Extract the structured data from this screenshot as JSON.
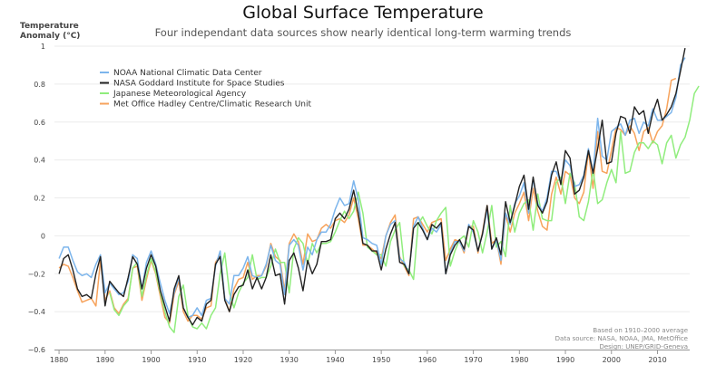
{
  "header": {
    "title": "Global Surface Temperature",
    "subtitle": "Four independant data sources show nearly identical long-term warming trends",
    "y_axis_title_line1": "Temperature",
    "y_axis_title_line2": "Anomaly (°C)"
  },
  "credits": {
    "line1": "Based on 1910–2000 average",
    "line2": "Data source: NASA, NOAA, JMA, MetOffice",
    "line3": "Design: UNEP/GRID-Geneva"
  },
  "chart_data": {
    "type": "line",
    "title": "Global Surface Temperature",
    "subtitle": "Four independant data sources show nearly identical long-term warming trends",
    "xlabel": "",
    "ylabel": "Temperature Anomaly (°C)",
    "xlim": [
      1879,
      2017
    ],
    "ylim": [
      -0.6,
      1.0
    ],
    "xticks": [
      "1880",
      "1890",
      "1900",
      "1910",
      "1920",
      "1930",
      "1940",
      "1950",
      "1960",
      "1970",
      "1980",
      "1990",
      "2000",
      "2010"
    ],
    "yticks": [
      "1",
      "0.8",
      "0.6",
      "0.4",
      "0.2",
      "0",
      "−0.2",
      "−0.4",
      "−0.6"
    ],
    "legend_position": "top-left",
    "series": [
      {
        "name": "NOAA National Climatic Data Center",
        "color": "#7cb5ec",
        "start_year": 1880,
        "values": [
          -0.12,
          -0.06,
          -0.06,
          -0.13,
          -0.19,
          -0.21,
          -0.2,
          -0.22,
          -0.15,
          -0.1,
          -0.3,
          -0.25,
          -0.28,
          -0.31,
          -0.3,
          -0.24,
          -0.1,
          -0.12,
          -0.28,
          -0.14,
          -0.08,
          -0.15,
          -0.25,
          -0.34,
          -0.41,
          -0.3,
          -0.22,
          -0.38,
          -0.43,
          -0.42,
          -0.38,
          -0.42,
          -0.34,
          -0.33,
          -0.16,
          -0.08,
          -0.33,
          -0.36,
          -0.21,
          -0.21,
          -0.17,
          -0.11,
          -0.21,
          -0.22,
          -0.21,
          -0.15,
          -0.05,
          -0.13,
          -0.15,
          -0.31,
          -0.05,
          -0.02,
          -0.05,
          -0.18,
          -0.06,
          -0.1,
          -0.02,
          0.02,
          0.02,
          0.06,
          0.14,
          0.2,
          0.16,
          0.17,
          0.29,
          0.19,
          -0.01,
          -0.02,
          -0.04,
          -0.05,
          -0.15,
          0.0,
          0.06,
          0.08,
          -0.12,
          -0.14,
          -0.2,
          0.05,
          0.1,
          0.04,
          -0.02,
          0.04,
          0.02,
          0.06,
          -0.2,
          -0.09,
          -0.03,
          -0.03,
          -0.08,
          0.06,
          0.02,
          -0.08,
          0.01,
          0.14,
          -0.07,
          -0.02,
          -0.13,
          0.12,
          0.06,
          0.17,
          0.21,
          0.28,
          0.12,
          0.3,
          0.17,
          0.13,
          0.2,
          0.34,
          0.34,
          0.28,
          0.4,
          0.37,
          0.26,
          0.27,
          0.32,
          0.46,
          0.33,
          0.62,
          0.42,
          0.4,
          0.55,
          0.57,
          0.59,
          0.53,
          0.61,
          0.62,
          0.54,
          0.6,
          0.58,
          0.67,
          0.61,
          0.61,
          0.63,
          0.65,
          0.73,
          0.9,
          0.94
        ]
      },
      {
        "name": "NASA Goddard Institute for Space Studies",
        "color": "#222222",
        "start_year": 1880,
        "values": [
          -0.2,
          -0.12,
          -0.1,
          -0.18,
          -0.28,
          -0.32,
          -0.31,
          -0.33,
          -0.2,
          -0.11,
          -0.37,
          -0.24,
          -0.27,
          -0.3,
          -0.32,
          -0.22,
          -0.11,
          -0.15,
          -0.28,
          -0.17,
          -0.1,
          -0.16,
          -0.29,
          -0.37,
          -0.45,
          -0.28,
          -0.21,
          -0.38,
          -0.43,
          -0.47,
          -0.43,
          -0.45,
          -0.36,
          -0.34,
          -0.15,
          -0.11,
          -0.34,
          -0.4,
          -0.31,
          -0.27,
          -0.26,
          -0.18,
          -0.28,
          -0.22,
          -0.28,
          -0.22,
          -0.1,
          -0.21,
          -0.2,
          -0.36,
          -0.13,
          -0.09,
          -0.17,
          -0.29,
          -0.13,
          -0.2,
          -0.15,
          -0.03,
          -0.03,
          -0.02,
          0.09,
          0.12,
          0.09,
          0.14,
          0.24,
          0.12,
          -0.04,
          -0.05,
          -0.08,
          -0.08,
          -0.18,
          -0.07,
          0.01,
          0.07,
          -0.14,
          -0.15,
          -0.2,
          0.04,
          0.07,
          0.03,
          -0.02,
          0.06,
          0.04,
          0.07,
          -0.2,
          -0.1,
          -0.05,
          -0.02,
          -0.07,
          0.05,
          0.03,
          -0.08,
          0.01,
          0.16,
          -0.07,
          -0.01,
          -0.1,
          0.18,
          0.07,
          0.16,
          0.26,
          0.32,
          0.14,
          0.31,
          0.16,
          0.12,
          0.18,
          0.32,
          0.39,
          0.27,
          0.45,
          0.41,
          0.22,
          0.24,
          0.31,
          0.45,
          0.33,
          0.46,
          0.61,
          0.38,
          0.39,
          0.54,
          0.63,
          0.62,
          0.54,
          0.68,
          0.64,
          0.66,
          0.54,
          0.65,
          0.72,
          0.61,
          0.64,
          0.68,
          0.75,
          0.87,
          0.99
        ]
      },
      {
        "name": "Japanese Meteorological Agency",
        "color": "#90ed7d",
        "start_year": 1891,
        "values": [
          -0.3,
          -0.39,
          -0.42,
          -0.37,
          -0.34,
          -0.17,
          -0.14,
          -0.32,
          -0.21,
          -0.12,
          -0.19,
          -0.3,
          -0.4,
          -0.48,
          -0.51,
          -0.32,
          -0.26,
          -0.42,
          -0.48,
          -0.49,
          -0.46,
          -0.49,
          -0.42,
          -0.38,
          -0.2,
          -0.09,
          -0.3,
          -0.38,
          -0.3,
          -0.25,
          -0.22,
          -0.1,
          -0.23,
          -0.22,
          -0.22,
          -0.16,
          -0.07,
          -0.14,
          -0.14,
          -0.3,
          -0.07,
          -0.01,
          -0.04,
          -0.15,
          -0.04,
          -0.09,
          -0.04,
          -0.04,
          -0.03,
          0.02,
          0.08,
          0.13,
          0.09,
          0.13,
          0.23,
          0.12,
          -0.06,
          -0.08,
          -0.1,
          -0.1,
          -0.16,
          -0.03,
          0.03,
          0.07,
          -0.16,
          -0.18,
          -0.23,
          0.06,
          0.1,
          0.05,
          0.01,
          0.08,
          0.12,
          0.15,
          -0.16,
          -0.08,
          -0.02,
          0.0,
          -0.06,
          0.08,
          0.02,
          -0.09,
          0.02,
          0.16,
          -0.06,
          -0.03,
          -0.11,
          0.16,
          0.02,
          0.12,
          0.17,
          0.19,
          0.03,
          0.22,
          0.09,
          0.08,
          0.08,
          0.28,
          0.31,
          0.17,
          0.33,
          0.28,
          0.1,
          0.08,
          0.18,
          0.35,
          0.17,
          0.19,
          0.28,
          0.35,
          0.28,
          0.55,
          0.33,
          0.34,
          0.44,
          0.49,
          0.49,
          0.46,
          0.5,
          0.48,
          0.38,
          0.49,
          0.53,
          0.41,
          0.48,
          0.52,
          0.61,
          0.75,
          0.79
        ]
      },
      {
        "name": "Met Office Hadley Centre/Climatic Research Unit",
        "color": "#f7a35c",
        "start_year": 1880,
        "values": [
          -0.17,
          -0.15,
          -0.16,
          -0.22,
          -0.29,
          -0.35,
          -0.34,
          -0.33,
          -0.37,
          -0.13,
          -0.34,
          -0.29,
          -0.38,
          -0.41,
          -0.36,
          -0.33,
          -0.17,
          -0.16,
          -0.34,
          -0.23,
          -0.13,
          -0.2,
          -0.32,
          -0.43,
          -0.46,
          -0.31,
          -0.24,
          -0.4,
          -0.45,
          -0.42,
          -0.42,
          -0.44,
          -0.38,
          -0.37,
          -0.14,
          -0.1,
          -0.33,
          -0.4,
          -0.28,
          -0.23,
          -0.22,
          -0.14,
          -0.23,
          -0.21,
          -0.21,
          -0.16,
          -0.04,
          -0.11,
          -0.13,
          -0.29,
          -0.04,
          0.01,
          -0.03,
          -0.15,
          0.01,
          -0.03,
          -0.02,
          0.04,
          0.06,
          0.04,
          0.08,
          0.09,
          0.07,
          0.11,
          0.2,
          0.09,
          -0.05,
          -0.05,
          -0.07,
          -0.09,
          -0.12,
          0.0,
          0.07,
          0.11,
          -0.11,
          -0.16,
          -0.21,
          0.09,
          0.1,
          0.06,
          0.02,
          0.07,
          0.08,
          0.09,
          -0.13,
          -0.07,
          -0.02,
          -0.03,
          -0.09,
          0.05,
          0.05,
          -0.09,
          0.02,
          0.16,
          -0.04,
          -0.02,
          -0.15,
          0.11,
          0.02,
          0.12,
          0.17,
          0.23,
          0.08,
          0.25,
          0.13,
          0.05,
          0.03,
          0.22,
          0.31,
          0.22,
          0.34,
          0.32,
          0.2,
          0.17,
          0.23,
          0.45,
          0.25,
          0.55,
          0.34,
          0.33,
          0.45,
          0.57,
          0.56,
          0.53,
          0.58,
          0.54,
          0.45,
          0.55,
          0.57,
          0.49,
          0.55,
          0.58,
          0.67,
          0.82,
          0.83
        ]
      }
    ]
  }
}
